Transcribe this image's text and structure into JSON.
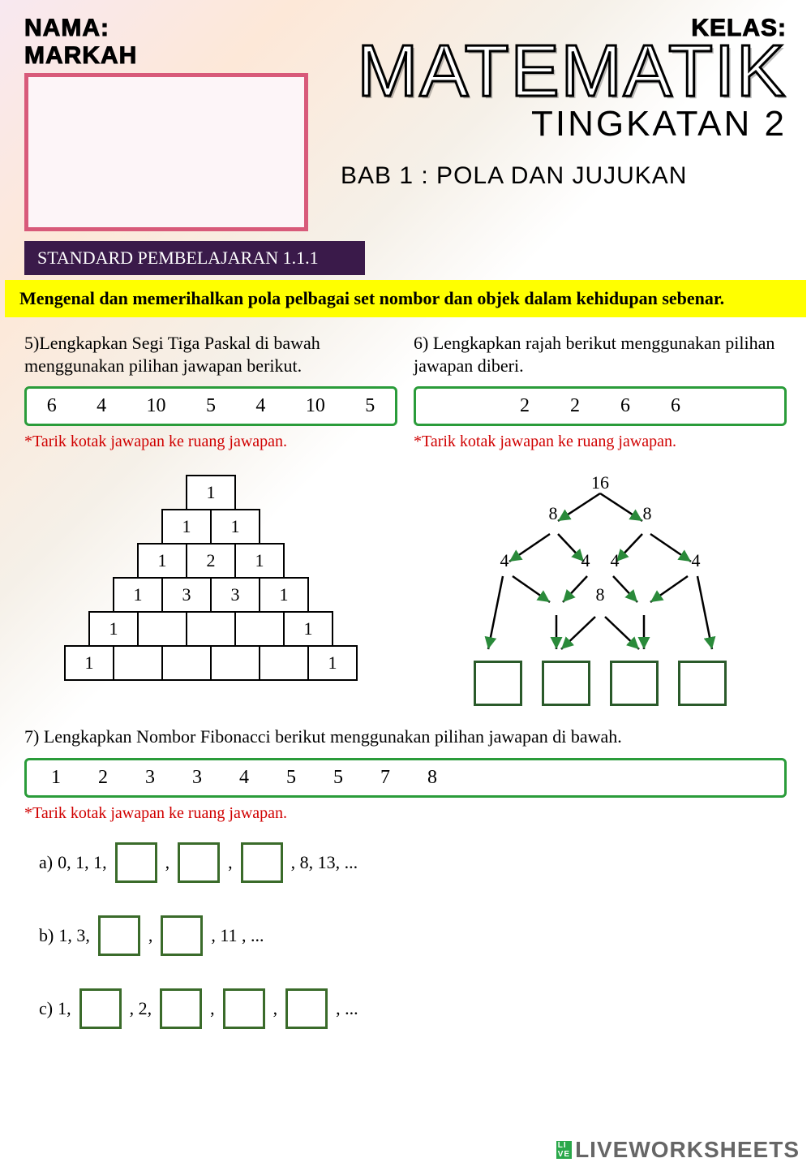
{
  "header": {
    "nama_label": "NAMA:",
    "kelas_label": "KELAS:",
    "markah_label": "MARKAH",
    "main_title": "MATEMATIK",
    "sub_title": "TINGKATAN 2",
    "bab": "BAB 1 : POLA DAN JUJUKAN",
    "standard": "STANDARD PEMBELAJARAN 1.1.1",
    "objective": "Mengenal dan memerihalkan pola pelbagai set nombor dan objek dalam kehidupan sebenar.",
    "colors": {
      "markah_border": "#d85a7a",
      "standard_bg": "#3a1a4a",
      "yellow_bg": "#ffff00",
      "option_border": "#2a9c3a",
      "hint_color": "#d00000",
      "ans_border": "#3a6b2a"
    }
  },
  "q5": {
    "text": "5)Lengkapkan Segi Tiga Paskal di bawah menggunakan pilihan jawapan berikut.",
    "options": [
      "6",
      "4",
      "10",
      "5",
      "4",
      "10",
      "5"
    ],
    "hint": "*Tarik kotak jawapan ke ruang jawapan.",
    "pascal": [
      [
        "1"
      ],
      [
        "1",
        "1"
      ],
      [
        "1",
        "2",
        "1"
      ],
      [
        "1",
        "3",
        "3",
        "1"
      ],
      [
        "1",
        "",
        "",
        "",
        "1"
      ],
      [
        "1",
        "",
        "",
        "",
        "",
        "1"
      ]
    ]
  },
  "q6": {
    "text": "6) Lengkapkan rajah berikut menggunakan pilihan jawapan diberi.",
    "options": [
      "2",
      "2",
      "6",
      "6"
    ],
    "hint": "*Tarik kotak jawapan ke ruang jawapan.",
    "tree": {
      "root": "16",
      "l2": [
        "8",
        "8"
      ],
      "l3": [
        "4",
        "4",
        "4",
        "4"
      ],
      "mid3": "8",
      "boxes": 4,
      "line_color": "#000000",
      "arrow_color": "#2a8a3a"
    }
  },
  "q7": {
    "text": "7) Lengkapkan Nombor Fibonacci berikut menggunakan pilihan jawapan di bawah.",
    "options": [
      "1",
      "2",
      "3",
      "3",
      "4",
      "5",
      "5",
      "7",
      "8"
    ],
    "hint": "*Tarik kotak jawapan ke ruang jawapan.",
    "rows": [
      {
        "label": "a)",
        "prefix": "0, 1, 1,",
        "blanks": 3,
        "suffix": ", 8, 13, ..."
      },
      {
        "label": "b)",
        "prefix": "1, 3,",
        "blanks": 2,
        "suffix": ", 11 , ..."
      },
      {
        "label": "c)",
        "prefix": "1,",
        "blanks": 1,
        "mid": ", 2,",
        "blanks2": 3,
        "suffix": ", ..."
      }
    ]
  },
  "watermark": {
    "badge1": "LI",
    "badge2": "VE",
    "text": "LIVEWORKSHEETS"
  }
}
